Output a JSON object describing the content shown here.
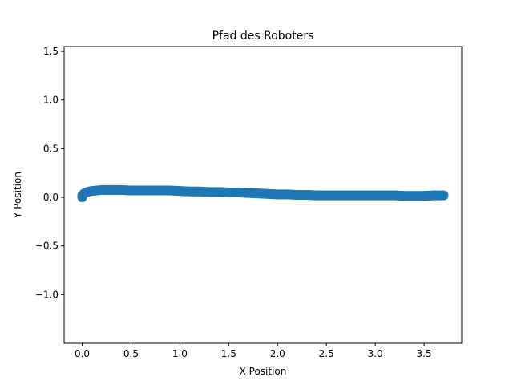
{
  "chart_data": {
    "type": "scatter",
    "title": "Pfad des Roboters",
    "xlabel": "X Position",
    "ylabel": "Y Position",
    "xlim": [
      -0.185,
      3.885
    ],
    "ylim": [
      -1.5,
      1.55
    ],
    "xticks": [
      0.0,
      0.5,
      1.0,
      1.5,
      2.0,
      2.5,
      3.0,
      3.5
    ],
    "xtick_labels": [
      "0.0",
      "0.5",
      "1.0",
      "1.5",
      "2.0",
      "2.5",
      "3.0",
      "3.5"
    ],
    "yticks": [
      -1.0,
      -0.5,
      0.0,
      0.5,
      1.0,
      1.5
    ],
    "ytick_labels": [
      "−1.0",
      "−0.5",
      "0.0",
      "0.5",
      "1.0",
      "1.5"
    ],
    "grid": false,
    "series": [
      {
        "color": "#1f77b4",
        "x": [
          0.0,
          0.0,
          0.0,
          0.01,
          0.02,
          0.04,
          0.07,
          0.1,
          0.15,
          0.2,
          0.3,
          0.4,
          0.5,
          0.6,
          0.7,
          0.8,
          0.9,
          1.0,
          1.1,
          1.2,
          1.3,
          1.4,
          1.5,
          1.6,
          1.7,
          1.8,
          1.9,
          2.0,
          2.1,
          2.2,
          2.3,
          2.4,
          2.5,
          2.6,
          2.7,
          2.8,
          2.9,
          3.0,
          3.1,
          3.2,
          3.3,
          3.4,
          3.5,
          3.6,
          3.65,
          3.7
        ],
        "y": [
          0.0,
          0.01,
          0.02,
          0.03,
          0.04,
          0.05,
          0.06,
          0.065,
          0.07,
          0.075,
          0.075,
          0.075,
          0.07,
          0.07,
          0.07,
          0.07,
          0.07,
          0.065,
          0.06,
          0.06,
          0.055,
          0.055,
          0.05,
          0.05,
          0.045,
          0.04,
          0.035,
          0.03,
          0.03,
          0.025,
          0.025,
          0.02,
          0.02,
          0.02,
          0.02,
          0.02,
          0.02,
          0.02,
          0.02,
          0.02,
          0.015,
          0.015,
          0.015,
          0.02,
          0.02,
          0.02
        ]
      }
    ]
  }
}
